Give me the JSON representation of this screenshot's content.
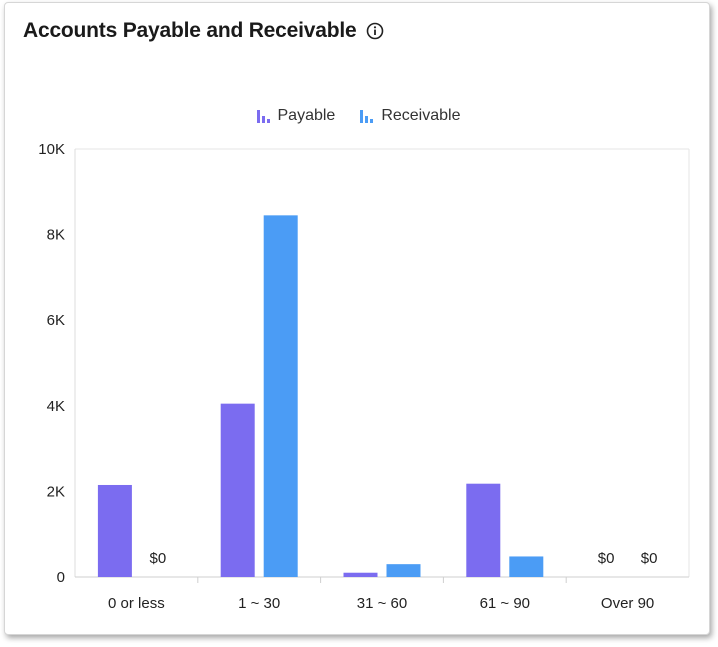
{
  "chart_data": {
    "type": "bar",
    "title": "Accounts Payable and Receivable",
    "categories": [
      "0 or less",
      "1 ~ 30",
      "31 ~ 60",
      "61 ~ 90",
      "Over 90"
    ],
    "series": [
      {
        "name": "Payable",
        "color": "#7b6cf0",
        "values": [
          2150,
          4050,
          100,
          2180,
          0
        ]
      },
      {
        "name": "Receivable",
        "color": "#4b9cf5",
        "values": [
          0,
          8450,
          300,
          480,
          0
        ]
      }
    ],
    "zero_label": "$0",
    "yticks": [
      0,
      2000,
      4000,
      6000,
      8000,
      10000
    ],
    "ytick_labels": [
      "0",
      "2K",
      "4K",
      "6K",
      "8K",
      "10K"
    ],
    "ylim": [
      0,
      10000
    ],
    "legend_position": "top-center",
    "grid": false
  }
}
